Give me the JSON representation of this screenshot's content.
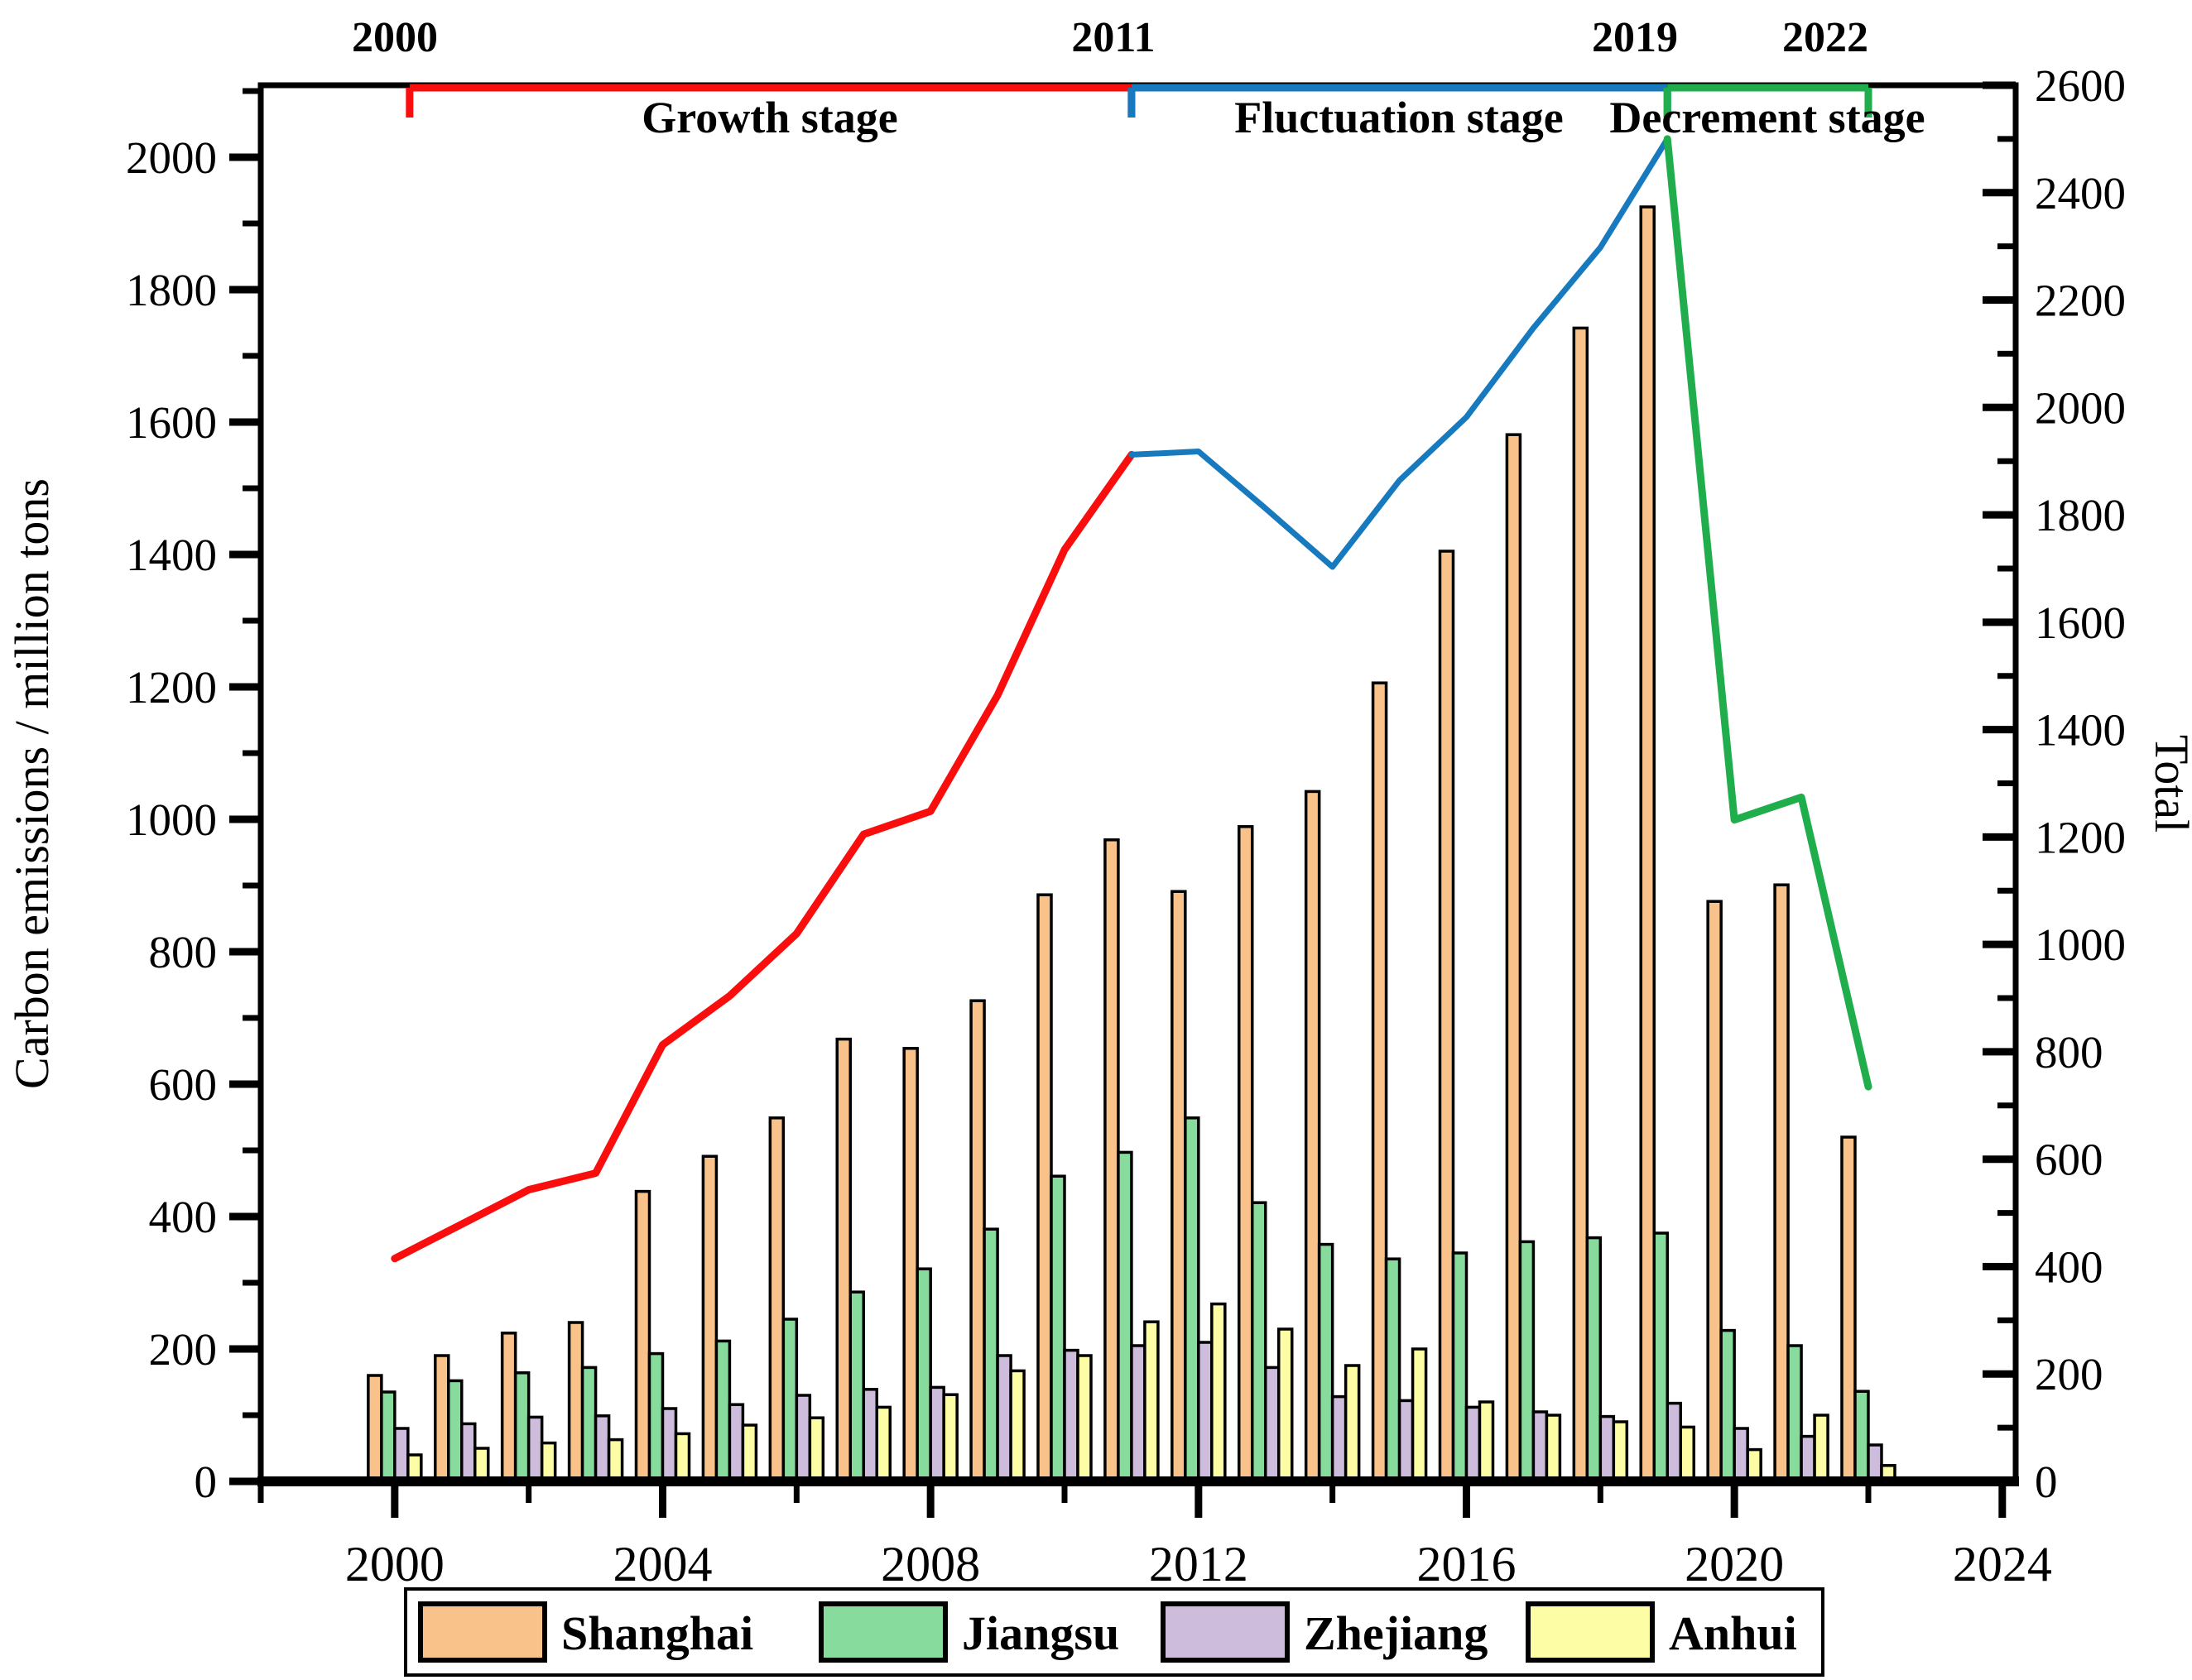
{
  "figure": {
    "left_axis_title": "Carbon emissions / million tons",
    "right_axis_title": "Total"
  },
  "annotations": {
    "breakpoint_years": [
      {
        "label": "2000",
        "year": 2000
      },
      {
        "label": "2011",
        "year": 2011
      },
      {
        "label": "2019",
        "year": 2019
      },
      {
        "label": "2022",
        "year": 2022
      }
    ],
    "stages": [
      {
        "label": "Growth stage",
        "start_year": 2000,
        "end_year": 2011,
        "color": "#F90D0D"
      },
      {
        "label": "Fluctuation stage",
        "start_year": 2011,
        "end_year": 2019,
        "color": "#1779BE"
      },
      {
        "label": "Decrement stage",
        "start_year": 2019,
        "end_year": 2022,
        "color": "#20AE4D"
      }
    ]
  },
  "legend": {
    "items": [
      {
        "label": "Shanghai",
        "color": "#F9C28A"
      },
      {
        "label": "Jiangsu",
        "color": "#87DC9D"
      },
      {
        "label": "Zhejiang",
        "color": "#CDBCDB"
      },
      {
        "label": "Anhui",
        "color": "#FDFDA6"
      }
    ]
  },
  "chart_data": {
    "type": "bar+line",
    "title": "",
    "x": [
      2000,
      2001,
      2002,
      2003,
      2004,
      2005,
      2006,
      2007,
      2008,
      2009,
      2010,
      2011,
      2012,
      2013,
      2014,
      2015,
      2016,
      2017,
      2018,
      2019,
      2020,
      2021,
      2022
    ],
    "series": [
      {
        "name": "Shanghai",
        "type": "bar",
        "axis": "left",
        "color": "#F9C28A",
        "values": [
          160,
          190,
          224,
          240,
          438,
          491,
          549,
          668,
          654,
          726,
          886,
          969,
          891,
          989,
          1042,
          1206,
          1405,
          1581,
          1742,
          1925,
          876,
          901,
          520
        ]
      },
      {
        "name": "Jiangsu",
        "type": "bar",
        "axis": "left",
        "color": "#87DC9D",
        "values": [
          135,
          152,
          164,
          172,
          193,
          212,
          245,
          286,
          321,
          381,
          461,
          497,
          549,
          421,
          358,
          336,
          345,
          362,
          368,
          375,
          228,
          205,
          136
        ]
      },
      {
        "name": "Zhejiang",
        "type": "bar",
        "axis": "left",
        "color": "#CDBCDB",
        "values": [
          80,
          87,
          97,
          99,
          110,
          116,
          130,
          139,
          142,
          190,
          198,
          205,
          210,
          172,
          128,
          122,
          112,
          105,
          98,
          118,
          80,
          68,
          55
        ]
      },
      {
        "name": "Anhui",
        "type": "bar",
        "axis": "left",
        "color": "#FDFDA6",
        "values": [
          40,
          50,
          58,
          63,
          72,
          85,
          96,
          112,
          131,
          167,
          190,
          241,
          268,
          230,
          175,
          200,
          120,
          100,
          90,
          82,
          48,
          100,
          24
        ]
      }
    ],
    "line": {
      "name": "Total",
      "type": "line",
      "axis": "right",
      "values": [
        415,
        479,
        543,
        574,
        813,
        904,
        1020,
        1205,
        1248,
        1464,
        1735,
        1912,
        1918,
        1812,
        1703,
        1864,
        1982,
        2148,
        2298,
        2500,
        1232,
        1274,
        735
      ],
      "segments": [
        {
          "start_year": 2000,
          "end_year": 2011,
          "color": "#F90D0D",
          "width": 9
        },
        {
          "start_year": 2011,
          "end_year": 2019,
          "color": "#1779BE",
          "width": 7
        },
        {
          "start_year": 2019,
          "end_year": 2022,
          "color": "#20AE4D",
          "width": 9
        }
      ]
    },
    "left_axis": {
      "label": "Carbon emissions / million tons",
      "tick_values": [
        0,
        200,
        400,
        600,
        800,
        1000,
        1200,
        1400,
        1600,
        1800,
        2000
      ],
      "minor_step": 100,
      "range": [
        0,
        2108.75
      ]
    },
    "right_axis": {
      "label": "Total",
      "tick_values": [
        0,
        200,
        400,
        600,
        800,
        1000,
        1200,
        1400,
        1600,
        1800,
        2000,
        2200,
        2400,
        2600
      ],
      "minor_step": 100,
      "range": [
        0,
        2600
      ]
    },
    "x_axis": {
      "tick_values": [
        2000,
        2004,
        2008,
        2012,
        2016,
        2020,
        2024
      ],
      "minor_tick_values": [
        1998,
        2002,
        2006,
        2010,
        2014,
        2018,
        2022
      ],
      "range": [
        1998,
        2024.2
      ]
    },
    "grid": false,
    "legend_position": "bottom"
  }
}
